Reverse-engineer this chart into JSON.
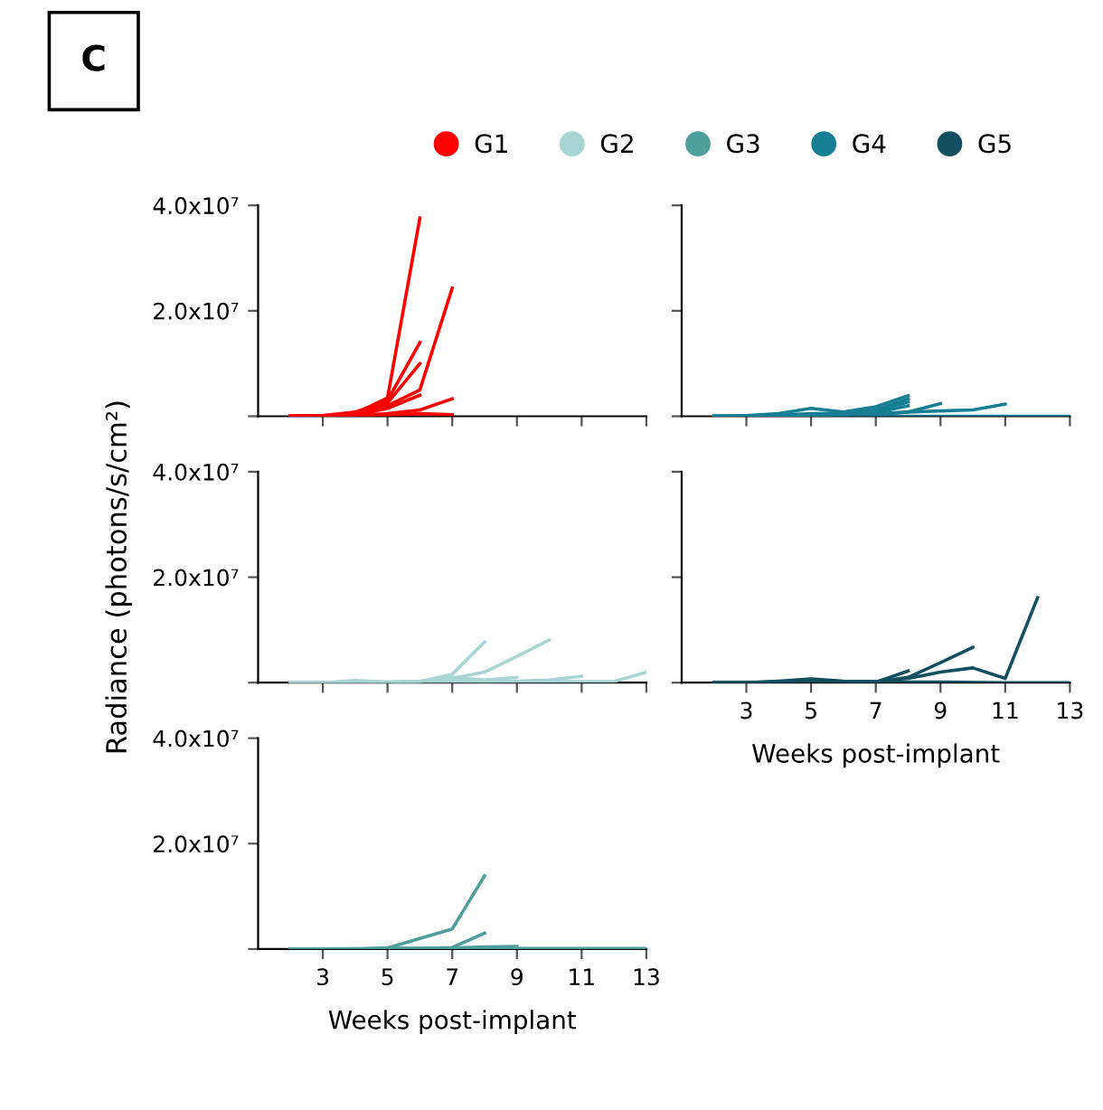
{
  "chart_data": [
    {
      "type": "line",
      "annotations": [
        "C"
      ],
      "legend": "top",
      "xlim": [
        1,
        13
      ],
      "ylim": [
        0,
        40000000
      ],
      "tick_labels": "y",
      "xticks": [
        3,
        5,
        7,
        9,
        11,
        13
      ],
      "yticks": [
        {
          "value": 0,
          "label": null
        },
        {
          "value": 20000000,
          "label": "2.0x10⁷"
        },
        {
          "value": 40000000,
          "label": "4.0x10⁷"
        }
      ],
      "series": [
        {
          "name": "G1",
          "color": "#ff0000",
          "x": [
            2,
            3,
            4,
            5,
            6
          ],
          "values": [
            0,
            100000,
            500000,
            3500000,
            37600000
          ]
        },
        {
          "color": "#ff0000",
          "x": [
            2,
            3,
            4,
            5,
            6
          ],
          "values": [
            0,
            100000,
            800000,
            3000000,
            14000000
          ]
        },
        {
          "color": "#ff0000",
          "x": [
            2,
            3,
            4,
            5,
            6
          ],
          "values": [
            0,
            0,
            500000,
            2500000,
            10000000
          ]
        },
        {
          "color": "#ff0000",
          "x": [
            2,
            3,
            4,
            5,
            6,
            7
          ],
          "values": [
            0,
            100000,
            300000,
            2000000,
            5000000,
            24300000
          ]
        },
        {
          "color": "#ff0000",
          "x": [
            2,
            3,
            4,
            5,
            6
          ],
          "values": [
            0,
            0,
            200000,
            1500000,
            4000000
          ]
        },
        {
          "color": "#ff0000",
          "x": [
            2,
            3,
            4,
            5,
            6,
            7
          ],
          "values": [
            0,
            0,
            100000,
            500000,
            1200000,
            3300000
          ]
        },
        {
          "color": "#ff0000",
          "x": [
            2,
            3,
            4,
            5,
            6,
            7
          ],
          "values": [
            0,
            0,
            0,
            200000,
            500000,
            300000
          ]
        }
      ]
    },
    {
      "type": "line",
      "legend": "top",
      "xlim": [
        1,
        13
      ],
      "ylim": [
        0,
        40000000
      ],
      "tick_labels": false,
      "xticks": [
        3,
        5,
        7,
        9,
        11,
        13
      ],
      "yticks": [
        {
          "value": 0,
          "label": null
        },
        {
          "value": 20000000,
          "label": null
        },
        {
          "value": 40000000,
          "label": null
        }
      ],
      "series": [
        {
          "name": "G4",
          "color": "#177f94",
          "x": [
            2,
            3,
            4,
            5,
            6,
            7,
            8
          ],
          "values": [
            0,
            100000,
            500000,
            1500000,
            800000,
            1800000,
            3900000
          ]
        },
        {
          "color": "#177f94",
          "x": [
            2,
            3,
            4,
            5,
            6,
            7,
            8
          ],
          "values": [
            0,
            0,
            200000,
            500000,
            500000,
            1200000,
            3300000
          ]
        },
        {
          "color": "#177f94",
          "x": [
            2,
            3,
            4,
            5,
            6,
            7,
            8
          ],
          "values": [
            0,
            0,
            100000,
            300000,
            400000,
            1000000,
            2700000
          ]
        },
        {
          "color": "#177f94",
          "x": [
            2,
            3,
            4,
            5,
            6,
            7,
            8
          ],
          "values": [
            0,
            0,
            0,
            200000,
            300000,
            700000,
            2000000
          ]
        },
        {
          "color": "#177f94",
          "x": [
            2,
            3,
            4,
            5,
            6,
            7,
            8,
            9
          ],
          "values": [
            0,
            0,
            0,
            200000,
            300000,
            500000,
            800000,
            2400000
          ]
        },
        {
          "color": "#177f94",
          "x": [
            2,
            3,
            4,
            5,
            6,
            7,
            8,
            9,
            10,
            11
          ],
          "values": [
            0,
            0,
            0,
            300000,
            500000,
            300000,
            800000,
            1000000,
            1200000,
            2300000
          ]
        },
        {
          "color": "#177f94",
          "x": [
            2,
            5,
            7,
            9,
            11,
            13
          ],
          "values": [
            0,
            0,
            0,
            0,
            0,
            0
          ]
        }
      ]
    },
    {
      "type": "line",
      "ylabel": "Radiance (photons/s/cm²)",
      "xlim": [
        1,
        13
      ],
      "ylim": [
        0,
        40000000
      ],
      "tick_labels": "y",
      "xticks": [
        3,
        5,
        7,
        9,
        11,
        13
      ],
      "yticks": [
        {
          "value": 0,
          "label": null
        },
        {
          "value": 20000000,
          "label": "2.0x10⁷"
        },
        {
          "value": 40000000,
          "label": "4.0x10⁷"
        }
      ],
      "series": [
        {
          "name": "G2",
          "color": "#a8d5d3",
          "x": [
            2,
            3,
            4,
            5,
            6,
            7,
            8
          ],
          "values": [
            0,
            0,
            400000,
            100000,
            200000,
            1600000,
            7700000
          ]
        },
        {
          "color": "#a8d5d3",
          "x": [
            2,
            3,
            4,
            5,
            6,
            7,
            8,
            9,
            10
          ],
          "values": [
            0,
            0,
            200000,
            100000,
            300000,
            800000,
            2000000,
            5000000,
            8100000
          ]
        },
        {
          "color": "#a8d5d3",
          "x": [
            2,
            3,
            4,
            5,
            6,
            7,
            8,
            9
          ],
          "values": [
            0,
            0,
            0,
            0,
            200000,
            1000000,
            500000,
            1000000
          ]
        },
        {
          "color": "#a8d5d3",
          "x": [
            2,
            3,
            4,
            5,
            6,
            7,
            8,
            9,
            10,
            11
          ],
          "values": [
            0,
            0,
            0,
            0,
            100000,
            300000,
            200000,
            300000,
            500000,
            1200000
          ]
        },
        {
          "color": "#a8d5d3",
          "x": [
            2,
            4,
            6,
            8,
            10,
            12,
            13
          ],
          "values": [
            0,
            0,
            0,
            100000,
            200000,
            200000,
            2000000
          ]
        }
      ]
    },
    {
      "type": "line",
      "xlabel": "Weeks post-implant",
      "xlim": [
        1,
        13
      ],
      "ylim": [
        0,
        40000000
      ],
      "tick_labels": "x",
      "xticks": [
        3,
        5,
        7,
        9,
        11,
        13
      ],
      "yticks": [
        {
          "value": 0,
          "label": null
        },
        {
          "value": 20000000,
          "label": null
        },
        {
          "value": 40000000,
          "label": null
        }
      ],
      "series": [
        {
          "name": "G5",
          "color": "#124f60",
          "x": [
            2,
            3,
            4,
            5,
            6,
            7,
            8,
            9,
            10,
            11,
            12
          ],
          "values": [
            0,
            0,
            300000,
            700000,
            300000,
            200000,
            800000,
            2000000,
            2800000,
            800000,
            16100000
          ]
        },
        {
          "color": "#124f60",
          "x": [
            2,
            3,
            4,
            5,
            6,
            7,
            8,
            9,
            10
          ],
          "values": [
            0,
            0,
            200000,
            500000,
            200000,
            100000,
            1000000,
            3800000,
            6700000
          ]
        },
        {
          "color": "#124f60",
          "x": [
            2,
            3,
            4,
            5,
            6,
            7,
            8
          ],
          "values": [
            0,
            0,
            100000,
            400000,
            200000,
            100000,
            2200000
          ]
        },
        {
          "color": "#124f60",
          "x": [
            2,
            5,
            7,
            9,
            11,
            13
          ],
          "values": [
            0,
            200000,
            100000,
            100000,
            0,
            0
          ]
        }
      ]
    },
    {
      "type": "line",
      "xlabel": "Weeks post-implant",
      "xlim": [
        1,
        13
      ],
      "ylim": [
        0,
        40000000
      ],
      "xticks": [
        3,
        5,
        7,
        9,
        11,
        13
      ],
      "yticks": [
        {
          "value": 0,
          "label": null
        },
        {
          "value": 20000000,
          "label": "2.0x10⁷"
        },
        {
          "value": 40000000,
          "label": "4.0x10⁷"
        }
      ],
      "series": [
        {
          "name": "G3",
          "color": "#4e9e9c",
          "x": [
            2,
            3,
            4,
            5,
            6,
            7,
            8
          ],
          "values": [
            0,
            0,
            0,
            200000,
            2000000,
            3800000,
            13900000
          ]
        },
        {
          "color": "#4e9e9c",
          "x": [
            2,
            3,
            4,
            5,
            6,
            7,
            8
          ],
          "values": [
            0,
            0,
            0,
            100000,
            100000,
            300000,
            3000000
          ]
        },
        {
          "color": "#4e9e9c",
          "x": [
            2,
            3,
            4,
            5,
            6,
            7,
            8,
            9
          ],
          "values": [
            0,
            0,
            0,
            100000,
            100000,
            200000,
            400000,
            500000
          ]
        },
        {
          "color": "#4e9e9c",
          "x": [
            2,
            5,
            9,
            13
          ],
          "values": [
            0,
            100000,
            100000,
            100000
          ]
        }
      ]
    }
  ]
}
